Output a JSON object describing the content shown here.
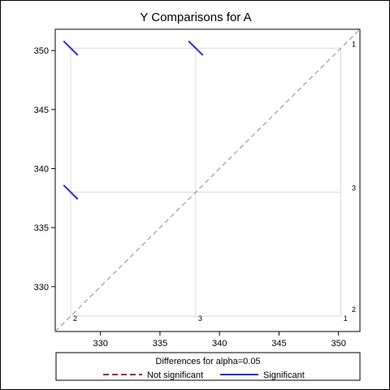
{
  "chart_data": {
    "type": "diffogram",
    "title": "Y Comparisons for A",
    "xlim": [
      326.2,
      351.8
    ],
    "ylim": [
      326.2,
      351.8
    ],
    "x_ticks": [
      330,
      335,
      340,
      345,
      350
    ],
    "y_ticks": [
      330,
      335,
      340,
      345,
      350
    ],
    "grid": true,
    "reference_line": "diagonal",
    "levels": [
      {
        "label": "1",
        "mean": 350.2
      },
      {
        "label": "2",
        "mean": 327.5
      },
      {
        "label": "3",
        "mean": 338.0
      }
    ],
    "comparisons": [
      {
        "x": 327.5,
        "y": 350.2,
        "status": "Significant"
      },
      {
        "x": 338.0,
        "y": 350.2,
        "status": "Significant"
      },
      {
        "x": 327.5,
        "y": 338.0,
        "status": "Significant"
      }
    ],
    "legend": {
      "title": "Differences for alpha=0.05",
      "placement": "bottom",
      "entries": [
        {
          "label": "Not significant",
          "color": "#a52a3a",
          "style": "dashed"
        },
        {
          "label": "Significant",
          "color": "#2b2bd6",
          "style": "solid"
        }
      ]
    },
    "colors": {
      "significant": "#2b2bd6",
      "not_significant": "#a52a3a",
      "grid": "#d9d9d9",
      "diagonal": "#8c8c8c"
    }
  }
}
